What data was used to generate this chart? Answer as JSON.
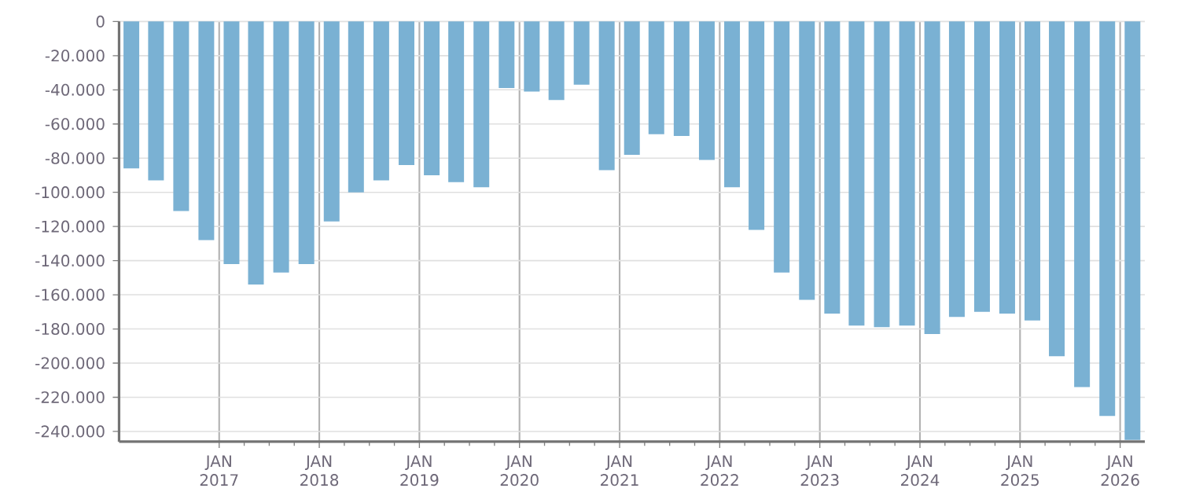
{
  "chart_data": {
    "type": "bar",
    "color": "#7ab1d3",
    "x": [
      "2016-02-15",
      "2016-05-15",
      "2016-08-15",
      "2016-11-15",
      "2017-02-15",
      "2017-05-15",
      "2017-08-15",
      "2017-11-15",
      "2018-02-15",
      "2018-05-15",
      "2018-08-15",
      "2018-11-15",
      "2019-02-15",
      "2019-05-15",
      "2019-08-15",
      "2019-11-15",
      "2020-02-15",
      "2020-05-15",
      "2020-08-15",
      "2020-11-15",
      "2021-02-15",
      "2021-05-15",
      "2021-08-15",
      "2021-11-15",
      "2022-02-15",
      "2022-05-15",
      "2022-08-15",
      "2022-11-15",
      "2023-02-15",
      "2023-05-15",
      "2023-08-15",
      "2023-11-15",
      "2024-02-15",
      "2024-05-15",
      "2024-08-15",
      "2024-11-15",
      "2025-02-15",
      "2025-05-15",
      "2025-08-15",
      "2025-11-15",
      "2026-02-15"
    ],
    "values": [
      -86000,
      -93000,
      -111000,
      -128000,
      -142000,
      -154000,
      -147000,
      -142000,
      -117000,
      -100000,
      -93000,
      -84000,
      -90000,
      -94000,
      -97000,
      -39000,
      -41000,
      -46000,
      -37000,
      -87000,
      -78000,
      -66000,
      -67000,
      -81000,
      -97000,
      -122000,
      -147000,
      -163000,
      -171000,
      -178000,
      -179000,
      -178000,
      -183000,
      -173000,
      -170000,
      -171000,
      -175000,
      -196000,
      -214000,
      -231000,
      -245000
    ],
    "xlim": [
      "2016-01-01",
      "2026-04-01"
    ],
    "ylim": [
      -246000,
      0
    ],
    "xticks": [
      {
        "value": "2017-01-01",
        "label": "JAN 2017"
      },
      {
        "value": "2018-01-01",
        "label": "JAN 2018"
      },
      {
        "value": "2019-01-01",
        "label": "JAN 2019"
      },
      {
        "value": "2020-01-01",
        "label": "JAN 2020"
      },
      {
        "value": "2021-01-01",
        "label": "JAN 2021"
      },
      {
        "value": "2022-01-01",
        "label": "JAN 2022"
      },
      {
        "value": "2023-01-01",
        "label": "JAN 2023"
      },
      {
        "value": "2024-01-01",
        "label": "JAN 2024"
      },
      {
        "value": "2025-01-01",
        "label": "JAN 2025"
      },
      {
        "value": "2026-01-01",
        "label": "JAN 2026"
      }
    ],
    "yticks": [
      0,
      {
        "value": -20000,
        "label": "-20.000"
      },
      {
        "value": -40000,
        "label": "-40.000"
      },
      {
        "value": -60000,
        "label": "-60.000"
      },
      {
        "value": -80000,
        "label": "-80.000"
      },
      {
        "value": -100000,
        "label": "-100.000"
      },
      {
        "value": -120000,
        "label": "-120.000"
      },
      {
        "value": -140000,
        "label": "-140.000"
      },
      {
        "value": -160000,
        "label": "-160.000"
      },
      {
        "value": -180000,
        "label": "-180.000"
      },
      {
        "value": -200000,
        "label": "-200.000"
      },
      {
        "value": -220000,
        "label": "-220.000"
      },
      {
        "value": -240000,
        "label": "-240.000"
      }
    ],
    "grid": true
  }
}
